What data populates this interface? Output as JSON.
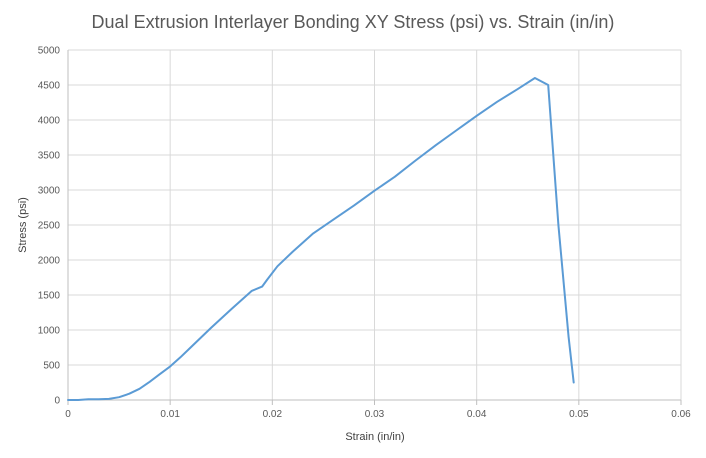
{
  "chart_data": {
    "type": "line",
    "title": "Dual Extrusion Interlayer Bonding XY Stress (psi) vs. Strain (in/in)",
    "xlabel": "Strain (in/in)",
    "ylabel": "Stress (psi)",
    "xlim": [
      0,
      0.06
    ],
    "ylim": [
      0,
      5000
    ],
    "x_ticks": [
      "0",
      "0.01",
      "0.02",
      "0.03",
      "0.04",
      "0.05",
      "0.06"
    ],
    "y_ticks": [
      "0",
      "500",
      "1000",
      "1500",
      "2000",
      "2500",
      "3000",
      "3500",
      "4000",
      "4500",
      "5000"
    ],
    "grid": true,
    "legend": "none",
    "series": [
      {
        "color": "#5b9bd5",
        "x": [
          0,
          0.001,
          0.002,
          0.003,
          0.004,
          0.005,
          0.006,
          0.007,
          0.008,
          0.009,
          0.01,
          0.011,
          0.012,
          0.014,
          0.016,
          0.018,
          0.019,
          0.0195,
          0.0205,
          0.022,
          0.024,
          0.026,
          0.028,
          0.03,
          0.032,
          0.034,
          0.036,
          0.038,
          0.04,
          0.042,
          0.044,
          0.0457,
          0.047,
          0.048,
          0.049,
          0.0495
        ],
        "y": [
          0,
          0,
          10,
          10,
          15,
          40,
          90,
          160,
          260,
          370,
          480,
          610,
          750,
          1030,
          1300,
          1560,
          1620,
          1720,
          1910,
          2120,
          2380,
          2580,
          2780,
          2990,
          3190,
          3420,
          3640,
          3850,
          4060,
          4260,
          4440,
          4600,
          4500,
          2500,
          900,
          250
        ]
      }
    ]
  }
}
